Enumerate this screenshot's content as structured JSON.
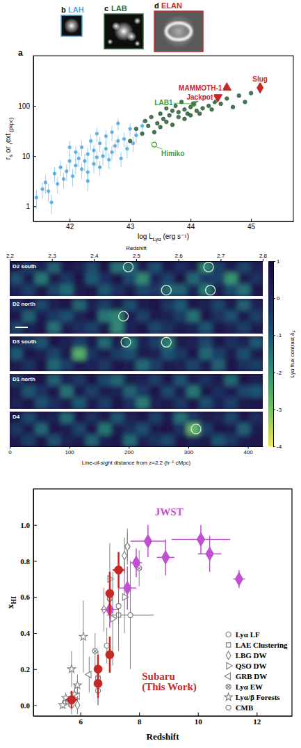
{
  "chart_data": [
    {
      "type": "scatter",
      "panel_label": "a",
      "x_label": [
        "log L",
        "Lyα",
        " (erg s⁻¹)"
      ],
      "y_label": [
        "r",
        "s",
        " or ",
        "r",
        "ext",
        " (pkpc)"
      ],
      "log": "y",
      "xlim": [
        41.4,
        45.7
      ],
      "ylim": [
        0.5,
        1000
      ],
      "xticks": [
        42,
        43,
        44,
        45
      ],
      "yticks": [
        1,
        10,
        100
      ],
      "series": [
        {
          "name": "LAH",
          "panel_label": "b",
          "color": "#4ea8e2",
          "marker": "circle",
          "x": [
            41.45,
            41.55,
            41.6,
            41.7,
            41.75,
            41.8,
            41.85,
            41.9,
            41.95,
            42.0,
            42.05,
            42.1,
            42.1,
            42.15,
            42.2,
            42.2,
            42.25,
            42.3,
            42.3,
            42.35,
            42.4,
            42.4,
            42.45,
            42.5,
            42.5,
            42.55,
            42.6,
            42.6,
            42.65,
            42.7,
            42.7,
            42.75,
            42.8,
            42.85,
            42.9,
            42.95,
            43.0,
            43.05,
            43.1,
            43.2,
            41.65,
            42.0,
            42.3,
            42.45,
            42.8
          ],
          "values": [
            1.5,
            2.2,
            3.0,
            1.2,
            4.5,
            2.8,
            6.0,
            3.5,
            5.0,
            8.0,
            4.0,
            12,
            6.5,
            9.0,
            5.5,
            15,
            8.0,
            11,
            4.8,
            20,
            7.0,
            13,
            9.5,
            18,
            6.0,
            10,
            25,
            14,
            8.5,
            12,
            30,
            16,
            20,
            9.0,
            22,
            14,
            35,
            18,
            26,
            40,
            2.0,
            15,
            3.2,
            28,
            45
          ],
          "yerr": [
            0.6,
            0.8,
            1.2,
            0.5,
            1.5,
            1.0,
            2.0,
            1.2,
            1.8,
            3.0,
            1.5,
            4,
            2.2,
            3,
            2,
            5,
            3,
            4,
            1.8,
            7,
            2.5,
            4,
            3,
            6,
            2,
            3.5,
            8,
            5,
            3,
            4,
            10,
            5,
            6,
            3,
            7,
            5,
            10,
            6,
            8,
            12,
            0.8,
            5,
            1.2,
            9,
            12
          ]
        },
        {
          "name": "LAB",
          "panel_label": "c",
          "color": "#2f6e3c",
          "marker": "circle",
          "x": [
            43.0,
            43.1,
            43.2,
            43.25,
            43.3,
            43.35,
            43.4,
            43.45,
            43.5,
            43.5,
            43.55,
            43.6,
            43.6,
            43.65,
            43.7,
            43.7,
            43.75,
            43.8,
            43.8,
            43.85,
            43.9,
            43.9,
            43.95,
            44.0,
            44.0,
            44.05,
            44.1,
            44.1,
            44.15,
            44.2,
            44.25,
            44.3,
            44.35,
            44.4,
            44.5,
            44.6,
            44.7,
            44.8,
            44.9,
            45.0
          ],
          "values": [
            20,
            35,
            28,
            50,
            40,
            60,
            30,
            45,
            70,
            38,
            55,
            90,
            48,
            65,
            80,
            42,
            100,
            60,
            75,
            120,
            55,
            85,
            70,
            95,
            65,
            110,
            80,
            130,
            70,
            90,
            150,
            100,
            85,
            120,
            110,
            140,
            95,
            160,
            120,
            180
          ]
        },
        {
          "name": "ELAN",
          "panel_label": "d",
          "color": "#c62828",
          "points": [
            {
              "label": "MAMMOTH-1",
              "x": 44.6,
              "y": 230,
              "marker": "triangle-up"
            },
            {
              "label": "Jackpot",
              "x": 44.45,
              "y": 150,
              "marker": "triangle-down"
            },
            {
              "label": "Slug",
              "x": 45.15,
              "y": 230,
              "marker": "diamond"
            }
          ]
        }
      ],
      "annotations": [
        {
          "text": "LAB1",
          "x": 44.05,
          "y": 110,
          "color": "#3a9a3a"
        },
        {
          "text": "Himiko",
          "x": 43.4,
          "y": 17,
          "color": "#3a9a3a"
        }
      ]
    },
    {
      "type": "heatmap",
      "x_label": "Line-of-sight distance from z=2.2 (h⁻¹ cMpc)",
      "x2_label": "Redshift",
      "xlim": [
        0,
        425
      ],
      "xticks": [
        0,
        100,
        200,
        300,
        400
      ],
      "x2lim": [
        2.2,
        2.8
      ],
      "x2ticks": [
        2.2,
        2.3,
        2.4,
        2.5,
        2.6,
        2.7,
        2.8
      ],
      "color_range": [
        -4,
        1
      ],
      "color_ticks": [
        1,
        0,
        -1,
        -2,
        -3,
        -4
      ],
      "colorbar_label": [
        "Lyα flux contrast δ",
        "F"
      ],
      "strips": [
        {
          "name": "D2 south",
          "cells": [
            [
              0.4,
              -0.6,
              0.2,
              -1.2,
              0.5,
              0.1,
              -0.8,
              0.6,
              -1.5,
              -1.4,
              0.3,
              -0.9,
              0.5,
              -0.2,
              0.4,
              -1.8,
              -0.5,
              0.3,
              -0.7,
              0.2
            ],
            [
              -0.9,
              0.3,
              -1.6,
              0.4,
              -0.4,
              0.6,
              -1.1,
              -0.2,
              0.5,
              -0.8,
              -1.9,
              0.2,
              -0.6,
              0.6,
              -1.3,
              -0.4,
              -0.6,
              -2.1,
              0.4,
              -0.3
            ],
            [
              0.2,
              -0.5,
              0.5,
              -0.7,
              -1.4,
              0.3,
              0.5,
              -1.0,
              -0.3,
              0.4,
              -0.7,
              -0.4,
              -1.3,
              -1.2,
              0.2,
              -1.6,
              0.4,
              -0.8,
              -1.5,
              0.5
            ]
          ]
        },
        {
          "name": "D2 north",
          "cells": [
            [
              -0.3,
              0.5,
              -0.8,
              0.2,
              0.6,
              -1.3,
              0.1,
              -0.5,
              0.4,
              -0.9,
              0.3,
              0.5,
              -0.4,
              -1.1,
              0.6,
              0.2,
              -0.7,
              0.4,
              -1.2,
              0.1
            ],
            [
              0.5,
              -1.2,
              0.3,
              -0.4,
              -0.9,
              0.2,
              0.5,
              -1.6,
              -1.8,
              0.3,
              -0.6,
              0.4,
              0.2,
              -0.5,
              -1.5,
              0.5,
              -0.3,
              -0.9,
              0.3,
              -0.6
            ],
            [
              -0.7,
              0.2,
              0.5,
              -1.5,
              0.3,
              -0.2,
              -0.6,
              0.4,
              -1.9,
              0.1,
              0.5,
              -0.8,
              -0.3,
              0.4,
              0.2,
              -1.0,
              0.5,
              0.1,
              -0.5,
              0.3
            ]
          ]
        },
        {
          "name": "D3 south",
          "cells": [
            [
              0.3,
              -0.4,
              -1.0,
              0.5,
              0.2,
              -0.6,
              0.4,
              -1.4,
              0.3,
              -1.6,
              0.2,
              -0.5,
              -1.7,
              0.4,
              0.1,
              -0.8,
              0.5,
              -0.3,
              0.2,
              -1.1
            ],
            [
              -1.1,
              0.5,
              0.2,
              -0.7,
              0.4,
              -2.6,
              -0.3,
              0.3,
              -0.5,
              -0.9,
              0.4,
              0.2,
              -1.0,
              -0.4,
              0.5,
              -1.3,
              -0.6,
              0.3,
              -0.9,
              0.4
            ],
            [
              0.4,
              -0.3,
              0.6,
              -1.3,
              -0.5,
              0.3,
              0.2,
              -0.4,
              0.5,
              0.3,
              -1.4,
              -0.6,
              0.4,
              0.2,
              -0.7,
              0.4,
              -1.2,
              0.5,
              -0.2,
              -0.5
            ]
          ]
        },
        {
          "name": "D1 north",
          "cells": [
            [
              -0.5,
              0.3,
              0.5,
              -1.2,
              0.2,
              -0.4,
              0.6,
              -0.8,
              -1.3,
              0.4,
              0.2,
              -0.6,
              0.5,
              -1.0,
              0.3,
              -0.3,
              0.4,
              -1.4,
              0.5,
              0.2
            ],
            [
              0.4,
              -1.0,
              -0.3,
              0.5,
              -1.5,
              0.3,
              -0.6,
              0.4,
              0.2,
              -1.2,
              -0.4,
              0.5,
              -0.8,
              0.3,
              -1.6,
              0.5,
              -0.2,
              0.3,
              -0.7,
              -1.0
            ],
            [
              0.2,
              0.5,
              -0.9,
              -0.2,
              0.4,
              -1.1,
              0.3,
              -0.5,
              0.5,
              -0.3,
              -1.7,
              0.2,
              0.4,
              -0.4,
              0.5,
              -0.9,
              0.2,
              -0.6,
              0.4,
              0.5
            ]
          ]
        },
        {
          "name": "D4",
          "cells": [
            [
              0.5,
              -0.8,
              0.3,
              0.2,
              -1.4,
              0.5,
              -0.3,
              0.4,
              -1.0,
              0.2,
              0.5,
              -0.6,
              0.3,
              -1.5,
              -0.4,
              0.4,
              0.2,
              -0.7,
              0.5,
              -0.2
            ],
            [
              -0.4,
              0.4,
              -1.3,
              0.5,
              0.3,
              -0.7,
              0.5,
              -1.6,
              0.3,
              -0.2,
              -0.9,
              0.4,
              0.5,
              -0.3,
              -2.8,
              -0.6,
              0.5,
              0.3,
              -1.2,
              0.4
            ],
            [
              0.3,
              -0.5,
              0.5,
              -0.9,
              0.2,
              0.4,
              -1.2,
              0.3,
              0.5,
              -1.4,
              0.2,
              -0.3,
              -0.8,
              0.5,
              0.2,
              0.4,
              -1.0,
              -0.4,
              0.3,
              0.5
            ]
          ]
        }
      ],
      "circles": [
        {
          "strip": 0,
          "x": 199,
          "row": 0
        },
        {
          "strip": 0,
          "x": 334,
          "row": 0
        },
        {
          "strip": 0,
          "x": 263,
          "row": 2
        },
        {
          "strip": 0,
          "x": 337,
          "row": 2
        },
        {
          "strip": 1,
          "x": 191,
          "row": 1
        },
        {
          "strip": 2,
          "x": 195,
          "row": 0
        },
        {
          "strip": 2,
          "x": 263,
          "row": 0
        },
        {
          "strip": 4,
          "x": 313,
          "row": 1
        }
      ]
    },
    {
      "type": "scatter",
      "x_label": "Redshift",
      "y_label": [
        "x",
        "HI"
      ],
      "xlim": [
        4.4,
        13.2
      ],
      "ylim": [
        -0.06,
        1.2
      ],
      "xticks": [
        6,
        8,
        10,
        12
      ],
      "yticks": [
        {
          "value": 0,
          "label": "0.0"
        },
        {
          "value": 0.2,
          "label": "0.2"
        },
        {
          "value": 0.4,
          "label": "0.4"
        },
        {
          "value": 0.6,
          "label": "0.6"
        },
        {
          "value": 0.8,
          "label": "0.8"
        },
        {
          "value": 1,
          "label": "1.0"
        }
      ],
      "legend": "lower right",
      "series": [
        {
          "name": "Subaru (This Work)",
          "color": "#c62828",
          "marker": "circle",
          "x": [
            5.7,
            6.6,
            6.6,
            7.0,
            7.0,
            7.3
          ],
          "values": [
            0.03,
            0.12,
            0.2,
            0.28,
            0.62,
            0.75
          ],
          "xerr": [
            0.2,
            0.1,
            0.1,
            0.1,
            0.1,
            0.2
          ],
          "yerr": [
            0.05,
            0.08,
            0.08,
            0.1,
            0.12,
            0.1
          ]
        },
        {
          "name": "JWST",
          "color": "#c050d0",
          "marker": "diamond",
          "x": [
            7.0,
            7.6,
            8.3,
            10.1,
            7.9,
            8.9,
            10.4,
            11.4
          ],
          "values": [
            0.53,
            0.65,
            0.91,
            0.92,
            0.79,
            0.82,
            0.84,
            0.7
          ],
          "xerr": [
            0.3,
            0.3,
            0.6,
            1.0,
            0.2,
            0.3,
            0.4,
            0.2
          ],
          "yerr": [
            0.1,
            0.12,
            0.09,
            0.08,
            0.08,
            0.1,
            0.1,
            0.05
          ]
        },
        {
          "name": "Lyα LF",
          "color": "#7f7f7f",
          "marker": "circle",
          "x": [
            5.7,
            6.6,
            6.6,
            6.9,
            7.0,
            7.3
          ],
          "values": [
            0.0,
            0.08,
            0.15,
            0.33,
            0.28,
            0.55
          ],
          "yerr": [
            0.05,
            0.08,
            0.08,
            0.1,
            0.1,
            0.1
          ]
        },
        {
          "name": "LAE Clustering",
          "color": "#7f7f7f",
          "marker": "square",
          "x": [
            6.6,
            7.3
          ],
          "values": [
            0.15,
            0.5
          ],
          "yerr": [
            0.15,
            0.2
          ]
        },
        {
          "name": "LBG DW",
          "color": "#7f7f7f",
          "marker": "diamond",
          "x": [
            5.9,
            6.8,
            7.0,
            7.5,
            7.6
          ],
          "values": [
            0.0,
            0.53,
            0.59,
            0.83,
            0.88
          ],
          "yerr": [
            0.05,
            0.12,
            0.1,
            0.1,
            0.08
          ]
        },
        {
          "name": "QSO DW",
          "color": "#7f7f7f",
          "marker": "triangle-right",
          "x": [
            7.0,
            7.1,
            7.5
          ],
          "values": [
            0.7,
            0.48,
            0.6
          ],
          "yerr": [
            0.2,
            0.26,
            0.2
          ]
        },
        {
          "name": "GRB DW",
          "color": "#7f7f7f",
          "marker": "triangle-left",
          "x": [
            5.9,
            6.3
          ],
          "values": [
            0.05,
            0.17
          ],
          "yerr": [
            0.05,
            0.1
          ]
        },
        {
          "name": "Lyα EW",
          "color": "#7f7f7f",
          "marker": "circle-cross",
          "x": [
            6.5,
            7.0,
            7.6,
            8.0
          ],
          "values": [
            0.3,
            0.59,
            0.88,
            0.76
          ],
          "yerr": [
            0.1,
            0.11,
            0.1,
            0.1
          ]
        },
        {
          "name": "Lyα/β Forests",
          "color": "#7f7f7f",
          "marker": "star",
          "x": [
            5.4,
            5.5,
            5.6,
            5.7,
            5.8,
            5.9,
            6.1
          ],
          "values": [
            0.0,
            0.04,
            0.02,
            0.2,
            0.06,
            0.11,
            0.38
          ],
          "yerr": [
            0.02,
            0.03,
            0.03,
            0.1,
            0.05,
            0.06,
            0.2
          ]
        },
        {
          "name": "CMB",
          "color": "#7f7f7f",
          "marker": "hexagon",
          "x": [
            7.7
          ],
          "values": [
            0.5
          ],
          "xerr": [
            0.8
          ],
          "yerr": [
            0.3
          ]
        }
      ]
    }
  ]
}
